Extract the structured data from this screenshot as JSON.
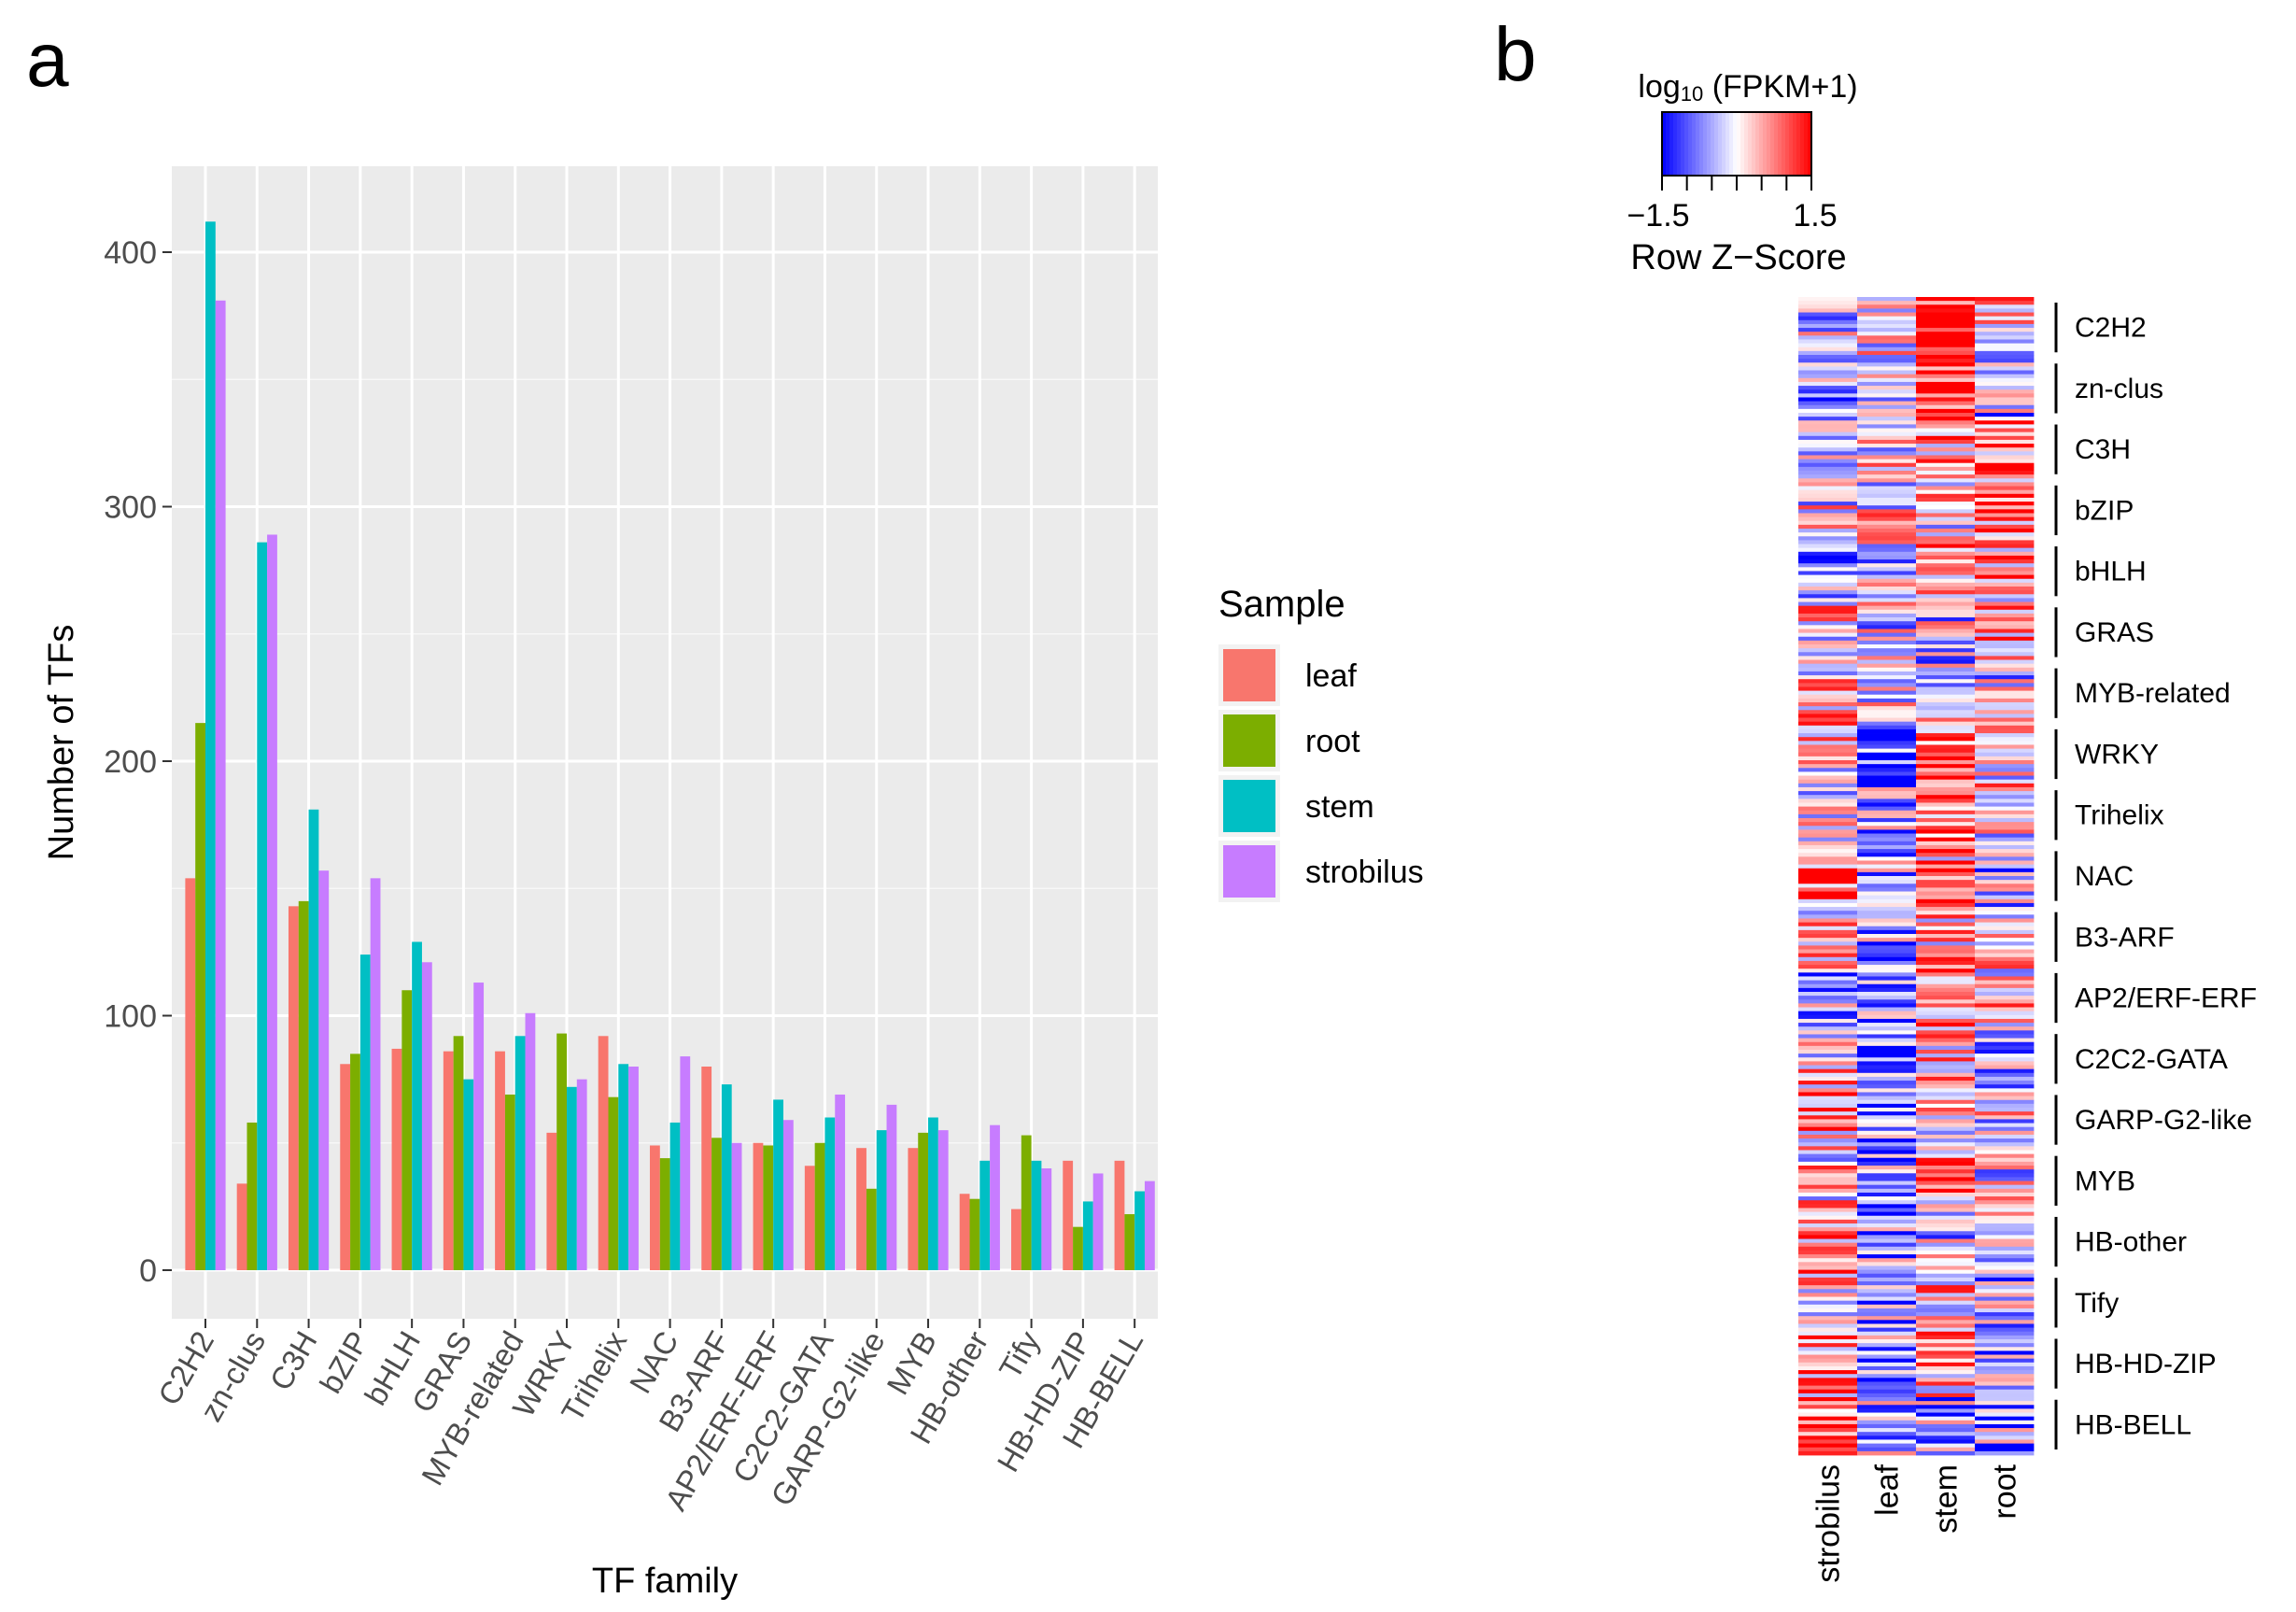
{
  "panels": {
    "a": "a",
    "b": "b"
  },
  "chart_data": [
    {
      "type": "bar",
      "title": "",
      "xlabel": "TF family",
      "ylabel": "Number of TFs",
      "ylim": [
        0,
        420
      ],
      "yticks": [
        0,
        100,
        200,
        300,
        400
      ],
      "categories": [
        "C2H2",
        "zn-clus",
        "C3H",
        "bZIP",
        "bHLH",
        "GRAS",
        "MYB-related",
        "WRKY",
        "Trihelix",
        "NAC",
        "B3-ARF",
        "AP2/ERF-ERF",
        "C2C2-GATA",
        "GARP-G2-like",
        "MYB",
        "HB-other",
        "Tify",
        "HB-HD-ZIP",
        "HB-BELL"
      ],
      "legend": {
        "title": "Sample",
        "position": "right"
      },
      "series": [
        {
          "name": "leaf",
          "color": "#F8766D",
          "values": [
            154,
            34,
            143,
            81,
            87,
            86,
            86,
            54,
            92,
            49,
            80,
            50,
            41,
            48,
            48,
            30,
            24,
            43,
            43
          ]
        },
        {
          "name": "root",
          "color": "#7CAE00",
          "values": [
            215,
            58,
            145,
            85,
            110,
            92,
            69,
            93,
            68,
            44,
            52,
            49,
            50,
            32,
            54,
            28,
            53,
            17,
            22
          ]
        },
        {
          "name": "stem",
          "color": "#00BFC4",
          "values": [
            412,
            286,
            181,
            124,
            129,
            75,
            92,
            72,
            81,
            58,
            73,
            67,
            60,
            55,
            60,
            43,
            43,
            27,
            31
          ]
        },
        {
          "name": "strobilus",
          "color": "#C77CFF",
          "values": [
            381,
            289,
            157,
            154,
            121,
            113,
            101,
            75,
            80,
            84,
            50,
            59,
            69,
            65,
            55,
            57,
            40,
            38,
            35
          ]
        }
      ]
    },
    {
      "type": "heatmap",
      "columns": [
        "strobilus",
        "leaf",
        "stem",
        "root"
      ],
      "color_key": {
        "title": "log10 (FPKM+1)",
        "title_main": "log",
        "title_sub": "10",
        "title_rest": " (FPKM+1)",
        "min": -1.5,
        "max": 1.5,
        "min_label": "−1.5",
        "max_label": "1.5",
        "label": "Row Z−Score",
        "low_color": "#0000FF",
        "mid_color": "#FFFFFF",
        "high_color": "#FF0000"
      },
      "groups": [
        "C2H2",
        "zn-clus",
        "C3H",
        "bZIP",
        "bHLH",
        "GRAS",
        "MYB-related",
        "WRKY",
        "Trihelix",
        "NAC",
        "B3-ARF",
        "AP2/ERF-ERF",
        "C2C2-GATA",
        "GARP-G2-like",
        "MYB",
        "HB-other",
        "Tify",
        "HB-HD-ZIP",
        "HB-BELL"
      ],
      "group_tendency": [
        [
          -0.3,
          0.0,
          1.2,
          0.2
        ],
        [
          -0.5,
          -0.4,
          1.5,
          -0.4
        ],
        [
          0.0,
          0.2,
          0.4,
          0.6
        ],
        [
          0.0,
          0.1,
          0.2,
          0.7
        ],
        [
          -0.7,
          -0.2,
          0.7,
          0.5
        ],
        [
          0.2,
          -0.2,
          -0.2,
          0.6
        ],
        [
          0.3,
          0.1,
          0.0,
          -0.2
        ],
        [
          0.3,
          -1.0,
          0.7,
          0.2
        ],
        [
          0.0,
          -0.3,
          0.8,
          -0.2
        ],
        [
          0.6,
          -0.5,
          0.6,
          -0.3
        ],
        [
          0.2,
          -0.5,
          0.3,
          0.3
        ],
        [
          -0.3,
          -0.6,
          0.8,
          0.3
        ],
        [
          0.3,
          -0.8,
          0.5,
          -0.2
        ],
        [
          0.5,
          -0.6,
          0.1,
          0.0
        ],
        [
          0.2,
          -0.6,
          0.5,
          -0.1
        ],
        [
          0.8,
          -0.5,
          -0.2,
          -0.3
        ],
        [
          0.2,
          -0.5,
          0.4,
          -0.3
        ],
        [
          0.4,
          -0.5,
          0.3,
          -0.4
        ],
        [
          1.0,
          -0.4,
          -0.4,
          -0.4
        ]
      ]
    }
  ]
}
